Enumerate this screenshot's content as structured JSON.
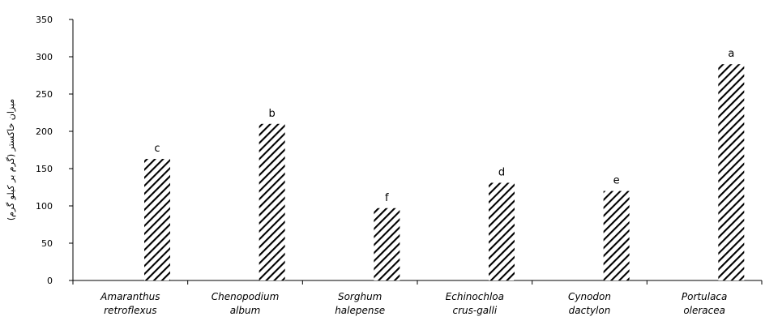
{
  "chart_data": {
    "type": "bar",
    "categories": [
      [
        "Amaranthus",
        "retroflexus"
      ],
      [
        "Chenopodium",
        "album"
      ],
      [
        "Sorghum",
        "halepense"
      ],
      [
        "Echinochloa",
        "crus-galli"
      ],
      [
        "Cynodon",
        "dactylon"
      ],
      [
        "Portulaca",
        "oleracea"
      ]
    ],
    "values": [
      163,
      210,
      97,
      131,
      120,
      290
    ],
    "labels": [
      "c",
      "b",
      "f",
      "d",
      "e",
      "a"
    ],
    "ylabel": "میزان خاکستر (گرم بر کیلو گرم)",
    "ylim": [
      0,
      350
    ],
    "yticks": [
      0,
      50,
      100,
      150,
      200,
      250,
      300,
      350
    ],
    "grid": false,
    "bar_fill": "diagonal-hatch",
    "colors": {
      "bar_hatch": "#000000",
      "axis": "#000000",
      "background": "#ffffff"
    }
  }
}
